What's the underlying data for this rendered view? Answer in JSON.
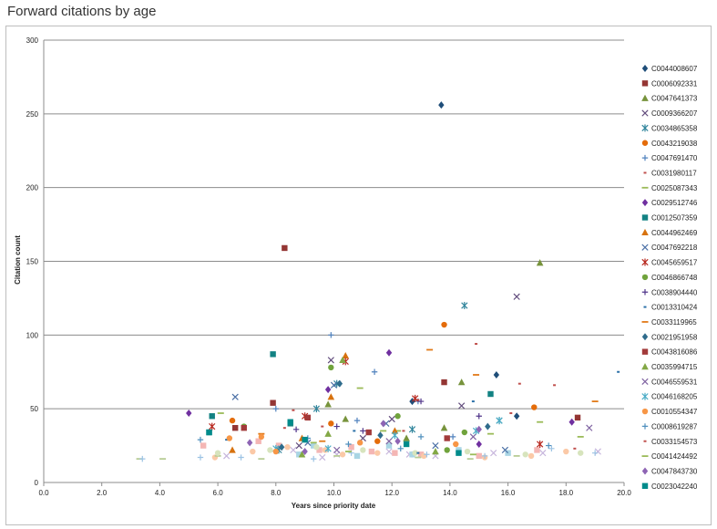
{
  "page": {
    "title": "Forward citations by age"
  },
  "chart_data": {
    "type": "scatter",
    "title": "",
    "xlabel": "Years since priority date",
    "ylabel": "Citation count",
    "xlim": [
      0,
      20
    ],
    "ylim": [
      0,
      300
    ],
    "x_ticks": [
      "0.0",
      "2.0",
      "4.0",
      "6.0",
      "8.0",
      "10.0",
      "12.0",
      "14.0",
      "16.0",
      "18.0",
      "20.0"
    ],
    "y_ticks": [
      "0",
      "50",
      "100",
      "150",
      "200",
      "250",
      "300"
    ],
    "grid": "horizontal",
    "legend_position": "right",
    "series": [
      {
        "name": "C0044008607",
        "color": "#1F4E79",
        "marker": "diamond",
        "points": [
          [
            13.7,
            256
          ],
          [
            15.6,
            73
          ],
          [
            16.3,
            45
          ],
          [
            12.7,
            55
          ]
        ]
      },
      {
        "name": "C0006092331",
        "color": "#943634",
        "marker": "square",
        "points": [
          [
            8.3,
            159
          ],
          [
            7.9,
            54
          ],
          [
            13.8,
            68
          ],
          [
            18.4,
            44
          ],
          [
            6.6,
            37
          ]
        ]
      },
      {
        "name": "C0047641373",
        "color": "#77933C",
        "marker": "triangle",
        "points": [
          [
            17.1,
            149
          ],
          [
            9.8,
            53
          ],
          [
            14.4,
            68
          ],
          [
            10.4,
            43
          ],
          [
            12.5,
            30
          ],
          [
            13.8,
            37
          ]
        ]
      },
      {
        "name": "C0009366207",
        "color": "#604A7B",
        "marker": "x",
        "points": [
          [
            16.3,
            126
          ],
          [
            9.9,
            83
          ],
          [
            12.0,
            43
          ],
          [
            14.4,
            52
          ],
          [
            8.8,
            25
          ],
          [
            11.0,
            30
          ]
        ]
      },
      {
        "name": "C0034865358",
        "color": "#31859C",
        "marker": "asterisk",
        "points": [
          [
            14.5,
            120
          ],
          [
            10.1,
            67
          ],
          [
            9.4,
            50
          ],
          [
            12.7,
            36
          ],
          [
            15.7,
            42
          ],
          [
            8.1,
            22
          ]
        ]
      },
      {
        "name": "C0043219038",
        "color": "#E46C0A",
        "marker": "circle",
        "points": [
          [
            13.8,
            107
          ],
          [
            16.9,
            51
          ],
          [
            9.9,
            40
          ],
          [
            11.5,
            28
          ],
          [
            6.5,
            42
          ]
        ]
      },
      {
        "name": "C0047691470",
        "color": "#4F81BD",
        "marker": "plus",
        "points": [
          [
            9.9,
            100
          ],
          [
            8.0,
            50
          ],
          [
            11.4,
            75
          ],
          [
            14.1,
            31
          ],
          [
            10.8,
            42
          ],
          [
            12.9,
            55
          ]
        ]
      },
      {
        "name": "C0031980117",
        "color": "#C0504D",
        "marker": "dash",
        "points": [
          [
            14.9,
            94
          ],
          [
            12.9,
            56
          ],
          [
            8.6,
            49
          ],
          [
            17.6,
            66
          ],
          [
            16.4,
            67
          ]
        ]
      },
      {
        "name": "C0025087343",
        "color": "#9BBB59",
        "marker": "longdash",
        "points": [
          [
            10.9,
            64
          ],
          [
            12.2,
            35
          ],
          [
            15.4,
            33
          ],
          [
            6.1,
            47
          ],
          [
            17.1,
            41
          ]
        ]
      },
      {
        "name": "C0029512746",
        "color": "#7030A0",
        "marker": "diamond",
        "points": [
          [
            11.9,
            88
          ],
          [
            9.8,
            63
          ],
          [
            5.0,
            47
          ],
          [
            15.0,
            26
          ],
          [
            18.2,
            41
          ]
        ]
      },
      {
        "name": "C0012507359",
        "color": "#138283",
        "marker": "square",
        "points": [
          [
            7.9,
            87
          ],
          [
            15.4,
            60
          ],
          [
            8.5,
            40
          ],
          [
            5.8,
            45
          ],
          [
            5.7,
            34
          ]
        ]
      },
      {
        "name": "C0044962469",
        "color": "#D7720E",
        "marker": "triangle",
        "points": [
          [
            10.4,
            86
          ],
          [
            9.9,
            58
          ],
          [
            12.1,
            35
          ],
          [
            8.9,
            30
          ],
          [
            6.5,
            22
          ]
        ]
      },
      {
        "name": "C0047692218",
        "color": "#4A6FA5",
        "marker": "x",
        "points": [
          [
            10.0,
            66
          ],
          [
            6.6,
            58
          ],
          [
            11.8,
            40
          ],
          [
            13.5,
            25
          ],
          [
            15.9,
            22
          ],
          [
            9.1,
            27
          ]
        ]
      },
      {
        "name": "C0045659517",
        "color": "#B7271E",
        "marker": "asterisk",
        "points": [
          [
            10.4,
            82
          ],
          [
            12.8,
            57
          ],
          [
            5.8,
            38
          ],
          [
            9.0,
            45
          ],
          [
            17.1,
            26
          ]
        ]
      },
      {
        "name": "C0046866748",
        "color": "#70A33C",
        "marker": "circle",
        "points": [
          [
            9.9,
            78
          ],
          [
            12.2,
            45
          ],
          [
            14.5,
            34
          ],
          [
            6.9,
            38
          ],
          [
            13.9,
            22
          ]
        ]
      },
      {
        "name": "C0038904440",
        "color": "#50358A",
        "marker": "plus",
        "points": [
          [
            13.0,
            55
          ],
          [
            11.0,
            35
          ],
          [
            15.0,
            45
          ],
          [
            8.7,
            36
          ],
          [
            10.1,
            38
          ]
        ]
      },
      {
        "name": "C0013310424",
        "color": "#2C71A8",
        "marker": "dash",
        "points": [
          [
            19.8,
            75
          ],
          [
            14.8,
            55
          ],
          [
            10.7,
            35
          ],
          [
            6.3,
            29
          ],
          [
            12.9,
            20
          ]
        ]
      },
      {
        "name": "C0033119965",
        "color": "#E27A19",
        "marker": "longdash",
        "points": [
          [
            14.9,
            73
          ],
          [
            19.0,
            55
          ],
          [
            9.6,
            28
          ],
          [
            13.3,
            90
          ],
          [
            7.5,
            33
          ]
        ]
      },
      {
        "name": "C0021951958",
        "color": "#2F6C8C",
        "marker": "diamond",
        "points": [
          [
            10.2,
            67
          ],
          [
            11.6,
            32
          ],
          [
            15.3,
            38
          ],
          [
            8.2,
            24
          ]
        ]
      },
      {
        "name": "C0043816086",
        "color": "#A23A3A",
        "marker": "square",
        "points": [
          [
            11.2,
            34
          ],
          [
            9.1,
            44
          ],
          [
            6.9,
            37
          ],
          [
            13.9,
            30
          ]
        ]
      },
      {
        "name": "C0035994715",
        "color": "#83A846",
        "marker": "triangle",
        "points": [
          [
            9.8,
            33
          ],
          [
            10.3,
            83
          ],
          [
            13.5,
            21
          ],
          [
            8.9,
            19
          ]
        ]
      },
      {
        "name": "C0046559531",
        "color": "#8064A2",
        "marker": "x",
        "points": [
          [
            11.9,
            28
          ],
          [
            10.1,
            22
          ],
          [
            14.8,
            31
          ],
          [
            18.8,
            37
          ]
        ]
      },
      {
        "name": "C0046168205",
        "color": "#4BACC6",
        "marker": "asterisk",
        "points": [
          [
            9.8,
            23
          ],
          [
            8.0,
            23
          ],
          [
            14.9,
            35
          ],
          [
            15.7,
            42
          ],
          [
            12.1,
            32
          ]
        ]
      },
      {
        "name": "C0010554347",
        "color": "#F79646",
        "marker": "circle",
        "points": [
          [
            7.5,
            31
          ],
          [
            6.4,
            30
          ],
          [
            10.9,
            27
          ],
          [
            8.0,
            21
          ],
          [
            14.2,
            26
          ]
        ]
      },
      {
        "name": "C0008619287",
        "color": "#4F8FBD",
        "marker": "plus",
        "points": [
          [
            10.5,
            26
          ],
          [
            12.3,
            23
          ],
          [
            17.4,
            25
          ],
          [
            9.1,
            30
          ],
          [
            13.0,
            31
          ],
          [
            5.4,
            29
          ]
        ]
      },
      {
        "name": "C0033154573",
        "color": "#C0504D",
        "marker": "dash",
        "points": [
          [
            12.4,
            35
          ],
          [
            16.1,
            47
          ],
          [
            9.6,
            38
          ],
          [
            8.3,
            37
          ],
          [
            18.3,
            23
          ]
        ]
      },
      {
        "name": "C0041424492",
        "color": "#9BBB59",
        "marker": "longdash",
        "points": [
          [
            11.7,
            35
          ],
          [
            14.8,
            19
          ],
          [
            9.3,
            27
          ],
          [
            10.5,
            21
          ],
          [
            18.5,
            31
          ]
        ]
      },
      {
        "name": "C0047843730",
        "color": "#8E64B4",
        "marker": "diamond",
        "points": [
          [
            12.2,
            28
          ],
          [
            9.0,
            21
          ],
          [
            15.0,
            36
          ],
          [
            11.7,
            40
          ],
          [
            7.1,
            27
          ]
        ]
      },
      {
        "name": "C0023042240",
        "color": "#008B8B",
        "marker": "square",
        "points": [
          [
            5.7,
            34
          ],
          [
            9.0,
            29
          ],
          [
            12.5,
            26
          ],
          [
            14.3,
            20
          ],
          [
            8.5,
            41
          ]
        ]
      },
      {
        "name": "",
        "color": "#F4B6B4",
        "marker": "square",
        "points": [
          [
            5.5,
            25
          ],
          [
            7.4,
            28
          ],
          [
            9.5,
            22
          ],
          [
            11.3,
            21
          ],
          [
            13.0,
            19
          ],
          [
            15.0,
            18
          ],
          [
            17.0,
            22
          ],
          [
            8.1,
            25
          ],
          [
            10.6,
            24
          ],
          [
            12.1,
            20
          ]
        ]
      },
      {
        "name": "",
        "color": "#C6B5DC",
        "marker": "x",
        "points": [
          [
            6.3,
            18
          ],
          [
            8.6,
            22
          ],
          [
            10.1,
            19
          ],
          [
            11.9,
            21
          ],
          [
            13.5,
            18
          ],
          [
            15.5,
            20
          ],
          [
            17.2,
            20
          ],
          [
            19.1,
            21
          ],
          [
            9.6,
            17
          ],
          [
            12.6,
            19
          ]
        ]
      },
      {
        "name": "",
        "color": "#A9D5E4",
        "marker": "square",
        "points": [
          [
            9.3,
            25
          ],
          [
            11.9,
            25
          ],
          [
            14.3,
            22
          ],
          [
            16.0,
            20
          ],
          [
            10.8,
            18
          ],
          [
            12.7,
            19
          ],
          [
            8.8,
            19
          ]
        ]
      },
      {
        "name": "",
        "color": "#FBC9A7",
        "marker": "circle",
        "points": [
          [
            5.9,
            17
          ],
          [
            7.2,
            21
          ],
          [
            8.4,
            24
          ],
          [
            9.7,
            22
          ],
          [
            11.5,
            20
          ],
          [
            13.1,
            18
          ],
          [
            15.2,
            17
          ],
          [
            16.8,
            18
          ],
          [
            18.0,
            21
          ],
          [
            10.3,
            19
          ]
        ]
      },
      {
        "name": "",
        "color": "#B8CC95",
        "marker": "longdash",
        "points": [
          [
            3.3,
            16
          ],
          [
            4.1,
            16
          ],
          [
            6.0,
            18
          ],
          [
            7.5,
            16
          ],
          [
            10.1,
            18
          ],
          [
            12.9,
            17
          ],
          [
            14.7,
            16
          ],
          [
            16.3,
            18
          ]
        ]
      },
      {
        "name": "",
        "color": "#9CC3E4",
        "marker": "plus",
        "points": [
          [
            3.4,
            16
          ],
          [
            5.4,
            17
          ],
          [
            6.8,
            17
          ],
          [
            10.6,
            20
          ],
          [
            13.2,
            19
          ],
          [
            15.2,
            18
          ],
          [
            17.5,
            23
          ],
          [
            19.0,
            20
          ],
          [
            9.3,
            16
          ]
        ]
      },
      {
        "name": "",
        "color": "#D7E4BD",
        "marker": "circle",
        "points": [
          [
            6.0,
            20
          ],
          [
            7.8,
            22
          ],
          [
            9.4,
            24
          ],
          [
            11.0,
            22
          ],
          [
            12.8,
            20
          ],
          [
            14.6,
            21
          ],
          [
            16.6,
            19
          ],
          [
            18.5,
            20
          ]
        ]
      }
    ]
  }
}
